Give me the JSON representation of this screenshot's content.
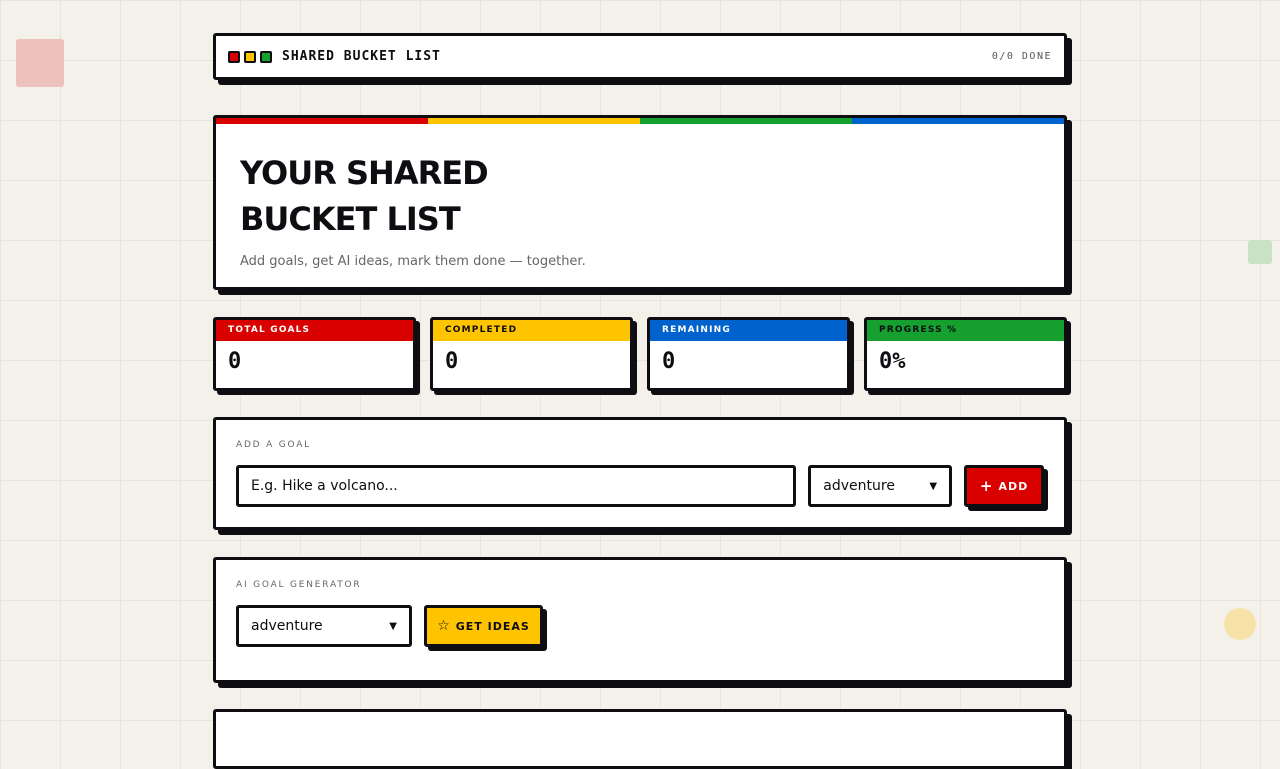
{
  "header": {
    "title": "SHARED BUCKET LIST",
    "status": "0/0 DONE"
  },
  "hero": {
    "title": "YOUR SHARED BUCKET LIST",
    "subtitle": "Add goals, get AI ideas, mark them done — together."
  },
  "stats": [
    {
      "label": "TOTAL GOALS",
      "value": "0",
      "color": "#d90000"
    },
    {
      "label": "COMPLETED",
      "value": "0",
      "color": "#ffc400"
    },
    {
      "label": "REMAINING",
      "value": "0",
      "color": "#0062cc"
    },
    {
      "label": "PROGRESS %",
      "value": "0%",
      "color": "#15a02f"
    }
  ],
  "add": {
    "label": "ADD A GOAL",
    "placeholder": "E.g. Hike a volcano...",
    "category": "adventure",
    "button": "ADD"
  },
  "ai": {
    "label": "AI GOAL GENERATOR",
    "category": "adventure",
    "button": "GET IDEAS"
  }
}
